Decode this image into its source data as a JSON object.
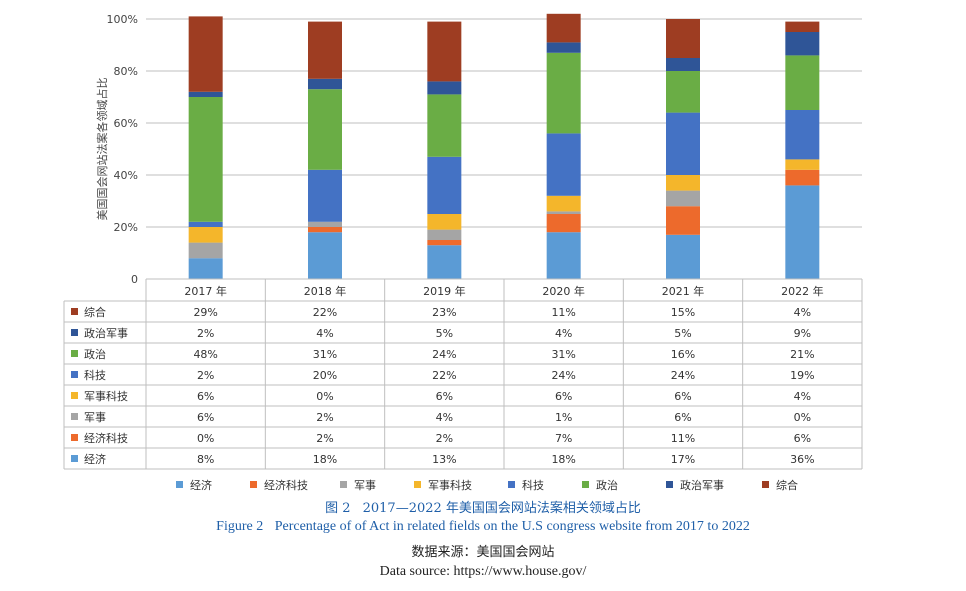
{
  "chart_data": {
    "type": "bar",
    "stacked": true,
    "percent_stacked": true,
    "categories": [
      "2017 年",
      "2018 年",
      "2019 年",
      "2020 年",
      "2021 年",
      "2022 年"
    ],
    "ylabel": "美国国会网站法案各领域占比",
    "yticks": [
      "0",
      "20%",
      "40%",
      "60%",
      "80%",
      "100%"
    ],
    "ylim": [
      0,
      100
    ],
    "grid": true,
    "legend_position": "bottom",
    "series": [
      {
        "name": "经济",
        "color": "#5b9bd5",
        "values": [
          8,
          18,
          13,
          18,
          17,
          36
        ],
        "labels": [
          "8%",
          "18%",
          "13%",
          "18%",
          "17%",
          "36%"
        ]
      },
      {
        "name": "经济科技",
        "color": "#ed6a2c",
        "values": [
          0,
          2,
          2,
          7,
          11,
          6
        ],
        "labels": [
          "0%",
          "2%",
          "2%",
          "7%",
          "11%",
          "6%"
        ]
      },
      {
        "name": "军事",
        "color": "#a5a5a5",
        "values": [
          6,
          2,
          4,
          1,
          6,
          0
        ],
        "labels": [
          "6%",
          "2%",
          "4%",
          "1%",
          "6%",
          "0%"
        ]
      },
      {
        "name": "军事科技",
        "color": "#f4b62b",
        "values": [
          6,
          0,
          6,
          6,
          6,
          4
        ],
        "labels": [
          "6%",
          "0%",
          "6%",
          "6%",
          "6%",
          "4%"
        ]
      },
      {
        "name": "科技",
        "color": "#4472c4",
        "values": [
          2,
          20,
          22,
          24,
          24,
          19
        ],
        "labels": [
          "2%",
          "20%",
          "22%",
          "24%",
          "24%",
          "19%"
        ]
      },
      {
        "name": "政治",
        "color": "#6aad45",
        "values": [
          48,
          31,
          24,
          31,
          16,
          21
        ],
        "labels": [
          "48%",
          "31%",
          "24%",
          "31%",
          "16%",
          "21%"
        ]
      },
      {
        "name": "政治军事",
        "color": "#2f5597",
        "values": [
          2,
          4,
          5,
          4,
          5,
          9
        ],
        "labels": [
          "2%",
          "4%",
          "5%",
          "4%",
          "5%",
          "9%"
        ]
      },
      {
        "name": "综合",
        "color": "#9e3d22",
        "values": [
          29,
          22,
          23,
          11,
          15,
          4
        ],
        "labels": [
          "29%",
          "22%",
          "23%",
          "11%",
          "15%",
          "4%"
        ]
      }
    ]
  },
  "caption": {
    "cn_label": "图 2",
    "cn_text": "2017—2022 年美国国会网站法案相关领域占比",
    "en_label": "Figure 2",
    "en_text": "Percentage of of Act in related fields on the U.S congress website from 2017 to 2022"
  },
  "source": {
    "cn": "数据来源：美国国会网站",
    "en": "Data source: https://www.house.gov/"
  }
}
